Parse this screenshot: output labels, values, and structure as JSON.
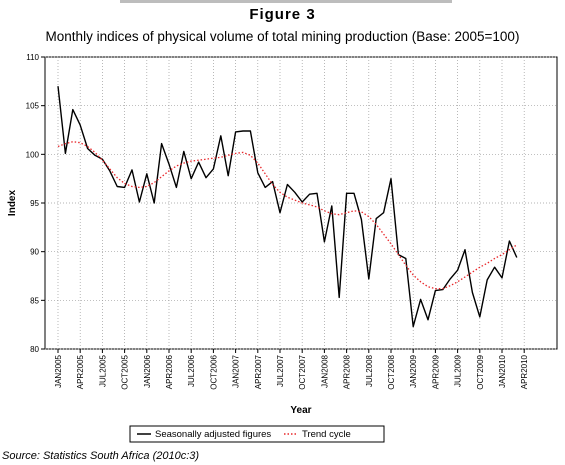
{
  "figure_label": "Figure 3",
  "title": "Monthly indices of physical volume of total mining production (Base: 2005=100)",
  "source": "Source: Statistics South Africa (2010c:3)",
  "chart_data": {
    "type": "line",
    "xlabel": "Year",
    "ylabel": "Index",
    "ylim": [
      80,
      110
    ],
    "yticks": [
      80,
      85,
      90,
      95,
      100,
      105,
      110
    ],
    "x_start": "2005-01",
    "xticks": [
      "JAN2005",
      "APR2005",
      "JUL2005",
      "OCT2005",
      "JAN2006",
      "APR2006",
      "JUL2006",
      "OCT2006",
      "JAN2007",
      "APR2007",
      "JUL2007",
      "OCT2007",
      "JAN2008",
      "APR2008",
      "JUL2008",
      "OCT2008",
      "JAN2009",
      "APR2009",
      "JUL2009",
      "OCT2009",
      "JAN2010",
      "APR2010"
    ],
    "grid": "dotted",
    "legend_position": "bottom",
    "series": [
      {
        "name": "Seasonally adjusted figures",
        "color": "#000000",
        "style": "solid",
        "values": [
          107.0,
          100.1,
          104.6,
          103.0,
          100.6,
          99.9,
          99.5,
          98.3,
          96.7,
          96.6,
          98.4,
          95.1,
          98.0,
          95.0,
          101.1,
          99.0,
          96.6,
          100.3,
          97.5,
          99.2,
          97.6,
          98.5,
          101.9,
          97.8,
          102.3,
          102.4,
          102.4,
          98.1,
          96.6,
          97.2,
          94.0,
          96.9,
          96.1,
          95.1,
          95.9,
          96.0,
          91.0,
          94.7,
          85.3,
          96.0,
          96.0,
          93.3,
          87.2,
          93.4,
          94.0,
          97.5,
          89.7,
          89.3,
          82.3,
          85.1,
          83.0,
          86.0,
          86.1,
          87.2,
          88.1,
          90.2,
          85.8,
          83.3,
          87.1,
          88.4,
          87.3,
          91.1,
          89.4
        ]
      },
      {
        "name": "Trend cycle",
        "color": "#e8262a",
        "style": "dotted",
        "values": [
          100.8,
          101.1,
          101.3,
          101.2,
          100.8,
          100.2,
          99.4,
          98.5,
          97.6,
          97.0,
          96.7,
          96.6,
          96.7,
          97.1,
          97.7,
          98.3,
          98.8,
          99.1,
          99.3,
          99.4,
          99.5,
          99.6,
          99.7,
          99.9,
          100.1,
          100.2,
          99.9,
          99.1,
          98.0,
          96.9,
          96.1,
          95.6,
          95.3,
          95.0,
          94.8,
          94.6,
          94.2,
          93.9,
          93.8,
          94.0,
          94.2,
          94.1,
          93.6,
          92.8,
          91.8,
          90.8,
          89.7,
          88.6,
          87.6,
          86.9,
          86.4,
          86.2,
          86.2,
          86.5,
          86.9,
          87.4,
          87.9,
          88.4,
          88.8,
          89.3,
          89.7,
          90.2,
          90.7
        ]
      }
    ]
  }
}
